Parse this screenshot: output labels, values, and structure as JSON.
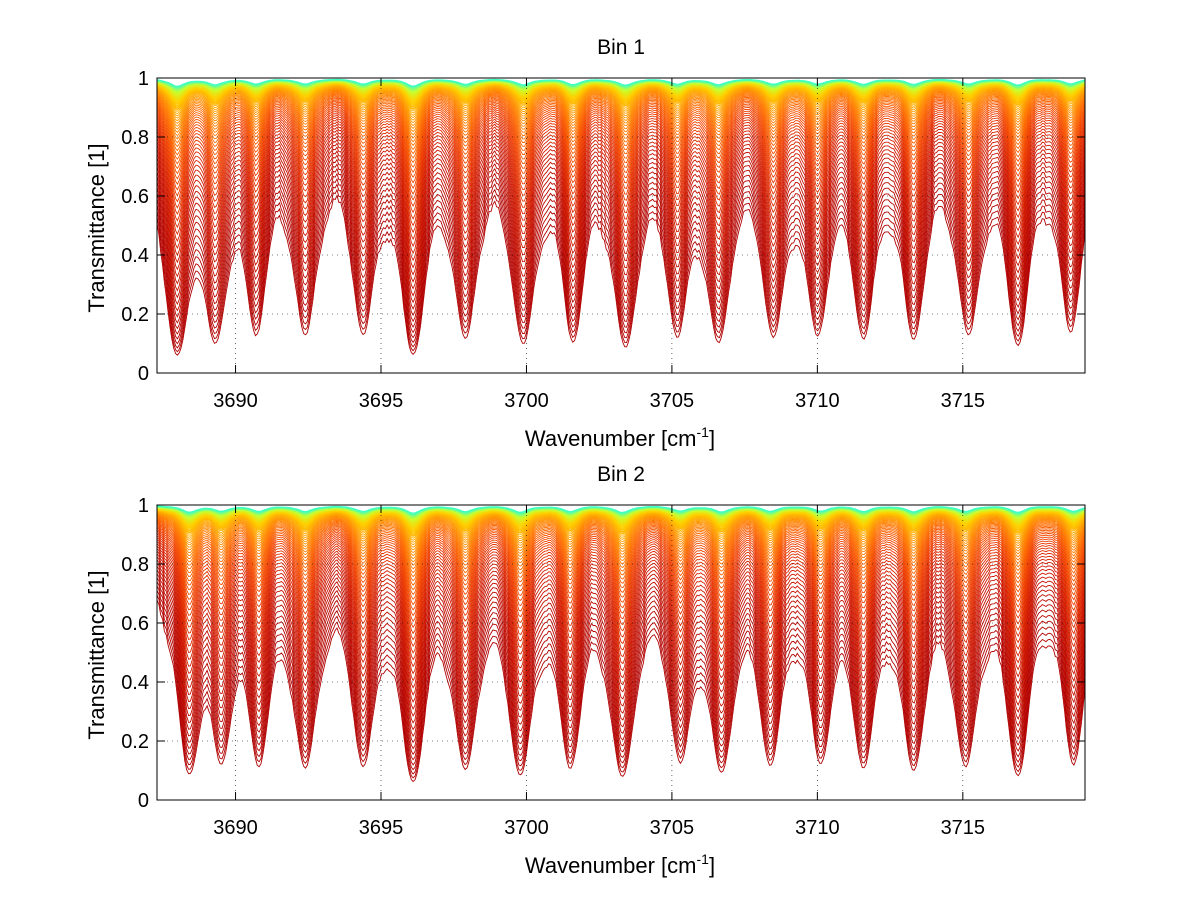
{
  "chart_data": [
    {
      "type": "line",
      "title": "Bin 1",
      "xlabel": "Wavenumber [cm",
      "xlabel_sup": "-1",
      "xlabel_end": "]",
      "ylabel": "Transmittance [1]",
      "xlim": [
        3687.3,
        3719.2
      ],
      "ylim": [
        0,
        1
      ],
      "xticks": [
        3690,
        3695,
        3700,
        3705,
        3710,
        3715
      ],
      "xtick_labels": [
        "3690",
        "3695",
        "3700",
        "3705",
        "3710",
        "3715"
      ],
      "yticks": [
        0,
        0.2,
        0.4,
        0.6,
        0.8,
        1
      ],
      "ytick_labels": [
        "0",
        "0.2",
        "0.4",
        "0.6",
        "0.8",
        "1"
      ],
      "grid": "dotted",
      "n_curves": 70,
      "colormap": [
        "#b00000",
        "#d01800",
        "#f04000",
        "#ff7000",
        "#ffa000",
        "#ffd000",
        "#c8ff30",
        "#40ffc0"
      ],
      "absorption_lines": [
        {
          "x": 3688.0,
          "depth": 0.85
        },
        {
          "x": 3689.3,
          "depth": 0.65
        },
        {
          "x": 3690.7,
          "depth": 0.55
        },
        {
          "x": 3692.4,
          "depth": 0.6
        },
        {
          "x": 3694.4,
          "depth": 0.58
        },
        {
          "x": 3696.1,
          "depth": 0.8
        },
        {
          "x": 3697.9,
          "depth": 0.62
        },
        {
          "x": 3699.9,
          "depth": 0.68
        },
        {
          "x": 3701.6,
          "depth": 0.62
        },
        {
          "x": 3703.4,
          "depth": 0.72
        },
        {
          "x": 3705.2,
          "depth": 0.58
        },
        {
          "x": 3706.6,
          "depth": 0.66
        },
        {
          "x": 3708.5,
          "depth": 0.6
        },
        {
          "x": 3710.0,
          "depth": 0.58
        },
        {
          "x": 3711.6,
          "depth": 0.6
        },
        {
          "x": 3713.3,
          "depth": 0.62
        },
        {
          "x": 3715.2,
          "depth": 0.6
        },
        {
          "x": 3716.9,
          "depth": 0.68
        },
        {
          "x": 3718.7,
          "depth": 0.58
        }
      ]
    },
    {
      "type": "line",
      "title": "Bin 2",
      "xlabel": "Wavenumber [cm",
      "xlabel_sup": "-1",
      "xlabel_end": "]",
      "ylabel": "Transmittance [1]",
      "xlim": [
        3687.3,
        3719.2
      ],
      "ylim": [
        0,
        1
      ],
      "xticks": [
        3690,
        3695,
        3700,
        3705,
        3710,
        3715
      ],
      "xtick_labels": [
        "3690",
        "3695",
        "3700",
        "3705",
        "3710",
        "3715"
      ],
      "yticks": [
        0,
        0.2,
        0.4,
        0.6,
        0.8,
        1
      ],
      "ytick_labels": [
        "0",
        "0.2",
        "0.4",
        "0.6",
        "0.8",
        "1"
      ],
      "grid": "dotted",
      "n_curves": 70,
      "colormap": [
        "#b00000",
        "#d01800",
        "#f04000",
        "#ff7000",
        "#ffa000",
        "#ffd000",
        "#c8ff30",
        "#40ffc0"
      ],
      "absorption_lines": [
        {
          "x": 3688.4,
          "depth": 0.7
        },
        {
          "x": 3689.5,
          "depth": 0.55
        },
        {
          "x": 3690.8,
          "depth": 0.58
        },
        {
          "x": 3692.4,
          "depth": 0.65
        },
        {
          "x": 3694.4,
          "depth": 0.62
        },
        {
          "x": 3696.1,
          "depth": 0.8
        },
        {
          "x": 3697.9,
          "depth": 0.66
        },
        {
          "x": 3699.8,
          "depth": 0.72
        },
        {
          "x": 3701.5,
          "depth": 0.62
        },
        {
          "x": 3703.3,
          "depth": 0.76
        },
        {
          "x": 3705.3,
          "depth": 0.58
        },
        {
          "x": 3706.7,
          "depth": 0.68
        },
        {
          "x": 3708.4,
          "depth": 0.6
        },
        {
          "x": 3710.1,
          "depth": 0.58
        },
        {
          "x": 3711.6,
          "depth": 0.62
        },
        {
          "x": 3713.3,
          "depth": 0.66
        },
        {
          "x": 3715.1,
          "depth": 0.64
        },
        {
          "x": 3716.9,
          "depth": 0.72
        },
        {
          "x": 3718.8,
          "depth": 0.62
        }
      ]
    }
  ]
}
